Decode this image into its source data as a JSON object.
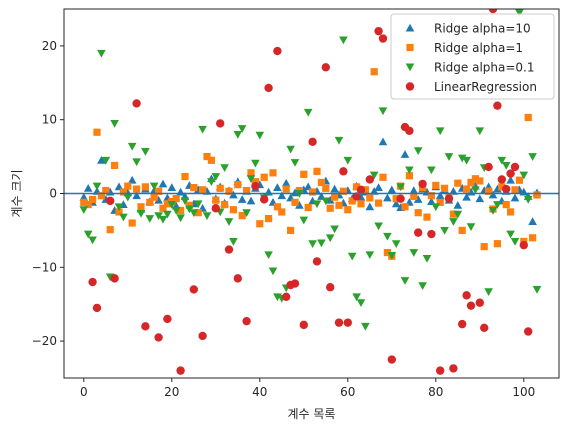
{
  "chart_data": {
    "type": "scatter",
    "title": "",
    "xlabel": "계수 목록",
    "ylabel": "계수 크기",
    "xlim": [
      -4.5,
      108
    ],
    "ylim": [
      -25,
      25
    ],
    "xticks": [
      0,
      20,
      40,
      60,
      80,
      100
    ],
    "yticks": [
      -20,
      -10,
      0,
      10,
      20
    ],
    "grid": false,
    "legend_placement": "upper-right",
    "hline_y": 0,
    "hline_color": "#1f77b4",
    "series": [
      {
        "name": "Ridge alpha=10",
        "marker": "triangle-up",
        "color": "#1f77b4",
        "x": [
          0,
          1,
          2,
          3,
          4,
          5,
          6,
          7,
          8,
          9,
          10,
          11,
          12,
          13,
          14,
          15,
          16,
          17,
          18,
          19,
          20,
          21,
          22,
          23,
          24,
          25,
          26,
          27,
          28,
          29,
          30,
          31,
          32,
          33,
          34,
          35,
          36,
          37,
          38,
          39,
          40,
          41,
          42,
          43,
          44,
          45,
          46,
          47,
          48,
          49,
          50,
          51,
          52,
          53,
          54,
          55,
          56,
          57,
          58,
          59,
          60,
          61,
          62,
          63,
          64,
          65,
          66,
          67,
          68,
          69,
          70,
          71,
          72,
          73,
          74,
          75,
          76,
          77,
          78,
          79,
          80,
          81,
          82,
          83,
          84,
          85,
          86,
          87,
          88,
          89,
          90,
          91,
          92,
          93,
          94,
          95,
          96,
          97,
          98,
          99,
          100,
          101,
          102,
          103
        ],
        "y": [
          -0.5,
          0.7,
          -1.2,
          0.3,
          4.5,
          -0.8,
          0.2,
          -2.3,
          0.9,
          -1.5,
          0.1,
          1.8,
          -0.3,
          -2.1,
          0.6,
          -1.1,
          0.4,
          -0.9,
          1.3,
          -0.6,
          0.8,
          -1.7,
          0.2,
          -0.4,
          1.1,
          -1.4,
          0.5,
          -2.0,
          0.3,
          2.0,
          -0.7,
          0.9,
          -1.3,
          0.4,
          -0.2,
          1.6,
          -0.8,
          0.3,
          -1.0,
          0.7,
          1.2,
          -0.5,
          0.2,
          -1.2,
          0.8,
          -0.3,
          1.4,
          -0.6,
          0.1,
          -1.6,
          0.5,
          0.9,
          -1.0,
          0.3,
          -0.4,
          1.7,
          -0.9,
          0.6,
          -0.2,
          -1.3,
          0.4,
          -0.7,
          1.0,
          -0.5,
          0.2,
          -1.8,
          0.3,
          0.8,
          7.0,
          -0.6,
          0.5,
          -1.4,
          -1.9,
          5.3,
          -1.2,
          0.4,
          -0.8,
          0.6,
          0.2,
          -1.1,
          0.9,
          -0.3,
          0.5,
          -0.9,
          0.3,
          -1.6,
          0.7,
          -0.5,
          0.2,
          1.0,
          -0.7,
          0.4,
          0.9,
          -0.2,
          0.6,
          -1.0,
          0.3,
          1.8,
          -0.6,
          0.5,
          0.2,
          -0.4,
          -3.8,
          0.1
        ]
      },
      {
        "name": "Ridge alpha=1",
        "marker": "square",
        "color": "#ff7f0e",
        "x": [
          0,
          1,
          2,
          3,
          4,
          5,
          6,
          7,
          8,
          9,
          10,
          11,
          12,
          13,
          14,
          15,
          16,
          17,
          18,
          19,
          20,
          21,
          22,
          23,
          24,
          25,
          26,
          27,
          28,
          29,
          30,
          31,
          32,
          33,
          34,
          35,
          36,
          37,
          38,
          39,
          40,
          41,
          42,
          43,
          44,
          45,
          46,
          47,
          48,
          49,
          50,
          51,
          52,
          53,
          54,
          55,
          56,
          57,
          58,
          59,
          60,
          61,
          62,
          63,
          64,
          65,
          66,
          67,
          68,
          69,
          70,
          71,
          72,
          73,
          74,
          75,
          76,
          77,
          78,
          79,
          80,
          81,
          82,
          83,
          84,
          85,
          86,
          87,
          88,
          89,
          90,
          91,
          92,
          93,
          94,
          95,
          96,
          97,
          98,
          99,
          100,
          101,
          102,
          103
        ],
        "y": [
          -1.2,
          -1.5,
          -0.8,
          8.3,
          -0.3,
          0.4,
          -4.9,
          3.8,
          -2.5,
          0.2,
          1.0,
          -4.0,
          0.6,
          -1.8,
          0.9,
          -1.2,
          -0.5,
          0.3,
          -2.0,
          -1.4,
          -1.1,
          -0.7,
          -2.3,
          2.3,
          -1.6,
          0.8,
          -2.6,
          0.5,
          5.0,
          4.5,
          -0.9,
          0.7,
          -1.5,
          0.3,
          -2.2,
          1.2,
          -3.0,
          0.4,
          2.8,
          1.6,
          -4.1,
          2.2,
          -3.4,
          2.8,
          -1.8,
          -2.5,
          0.6,
          -5.0,
          -1.2,
          0.4,
          2.6,
          -1.9,
          0.2,
          3.0,
          1.5,
          0.7,
          -2.0,
          -0.5,
          -1.6,
          0.3,
          -2.2,
          -1.0,
          0.9,
          -1.4,
          0.5,
          -0.6,
          16.5,
          -1.3,
          2.2,
          -8.0,
          -8.5,
          -0.7,
          1.0,
          -1.8,
          2.4,
          -0.4,
          -2.6,
          0.8,
          -3.2,
          -0.3,
          1.1,
          -1.2,
          0.7,
          -0.5,
          -2.8,
          1.4,
          -5.0,
          0.6,
          1.5,
          2.0,
          1.7,
          -7.2,
          0.3,
          -2.1,
          -6.8,
          0.9,
          -1.5,
          -2.5,
          0.5,
          1.8,
          -6.5,
          10.3,
          -6.0,
          -0.2
        ]
      },
      {
        "name": "Ridge alpha=0.1",
        "marker": "triangle-down",
        "color": "#2ca02c",
        "x": [
          0,
          1,
          2,
          3,
          4,
          5,
          6,
          7,
          8,
          9,
          10,
          11,
          12,
          13,
          14,
          15,
          16,
          17,
          18,
          19,
          20,
          21,
          22,
          23,
          24,
          25,
          26,
          27,
          28,
          29,
          30,
          31,
          32,
          33,
          34,
          35,
          36,
          37,
          38,
          39,
          40,
          41,
          42,
          43,
          44,
          45,
          46,
          47,
          48,
          49,
          50,
          51,
          52,
          53,
          54,
          55,
          56,
          57,
          58,
          59,
          60,
          61,
          62,
          63,
          64,
          65,
          66,
          67,
          68,
          69,
          70,
          71,
          72,
          73,
          74,
          75,
          76,
          77,
          78,
          79,
          80,
          81,
          82,
          83,
          84,
          85,
          86,
          87,
          88,
          89,
          90,
          91,
          92,
          93,
          94,
          95,
          96,
          97,
          98,
          99,
          100,
          101,
          102,
          103
        ],
        "y": [
          -2.2,
          -5.5,
          -6.3,
          1.0,
          19.0,
          4.5,
          -11.3,
          9.5,
          -1.8,
          -3.2,
          -0.5,
          6.4,
          4.3,
          -2.7,
          5.7,
          -3.4,
          1.0,
          -3.0,
          -3.5,
          -2.8,
          -1.5,
          -2.3,
          -3.3,
          -1.0,
          -2.1,
          -2.6,
          -1.4,
          8.7,
          -3.0,
          1.6,
          2.3,
          -2.5,
          3.5,
          -3.8,
          -6.5,
          8.0,
          8.8,
          -2.6,
          2.0,
          4.1,
          7.9,
          -0.6,
          -8.3,
          -10.5,
          -14.0,
          -14.2,
          -12.8,
          6.0,
          4.2,
          0.0,
          -3.6,
          11.0,
          -6.8,
          -1.4,
          -6.7,
          -1.0,
          -6.0,
          -4.8,
          7.2,
          20.8,
          4.5,
          -8.5,
          -14.0,
          -14.8,
          -18.0,
          -8.3,
          2.5,
          -4.4,
          11.2,
          -5.8,
          -8.4,
          -6.8,
          0.9,
          -11.8,
          3.2,
          -8.0,
          5.8,
          -12.5,
          -8.8,
          3.2,
          -1.8,
          8.5,
          -5.0,
          5.0,
          -3.8,
          -2.8,
          4.8,
          4.5,
          -4.5,
          0.5,
          8.5,
          3.5,
          -13.3,
          -2.3,
          -1.5,
          4.5,
          3.8,
          -5.5,
          -6.5,
          24.5,
          2.5,
          -0.8,
          5.0,
          -13.0
        ]
      },
      {
        "name": "LinearRegression",
        "marker": "circle",
        "color": "#d62728",
        "x": [
          2,
          3,
          6,
          7,
          12,
          14,
          17,
          19,
          22,
          25,
          27,
          30,
          31,
          33,
          35,
          37,
          39,
          41,
          42,
          44,
          46,
          47,
          48,
          50,
          52,
          53,
          55,
          56,
          58,
          59,
          60,
          62,
          63,
          65,
          67,
          68,
          70,
          72,
          73,
          74,
          76,
          77,
          79,
          81,
          83,
          84,
          86,
          87,
          88,
          90,
          91,
          92,
          93,
          94,
          95,
          96,
          97,
          98,
          100,
          101
        ],
        "y": [
          -12.0,
          -15.5,
          -1.0,
          -11.5,
          12.2,
          -18.0,
          -19.5,
          -17.0,
          -24.0,
          -13.0,
          -19.3,
          -2.0,
          9.5,
          -7.6,
          -11.5,
          -17.3,
          1.0,
          -0.8,
          14.3,
          19.3,
          -14.0,
          -12.4,
          -12.2,
          -17.8,
          7.0,
          -9.2,
          17.1,
          -12.7,
          -17.5,
          3.0,
          -17.5,
          -0.4,
          0.5,
          1.9,
          22.0,
          21.0,
          -22.5,
          -0.7,
          9.0,
          8.5,
          -5.3,
          1.3,
          -5.5,
          -24.0,
          -0.7,
          -23.7,
          -17.7,
          -13.8,
          -15.2,
          -14.8,
          -18.2,
          3.6,
          25.0,
          11.9,
          1.9,
          0.6,
          2.7,
          3.6,
          -7.0,
          -18.7
        ]
      }
    ]
  }
}
